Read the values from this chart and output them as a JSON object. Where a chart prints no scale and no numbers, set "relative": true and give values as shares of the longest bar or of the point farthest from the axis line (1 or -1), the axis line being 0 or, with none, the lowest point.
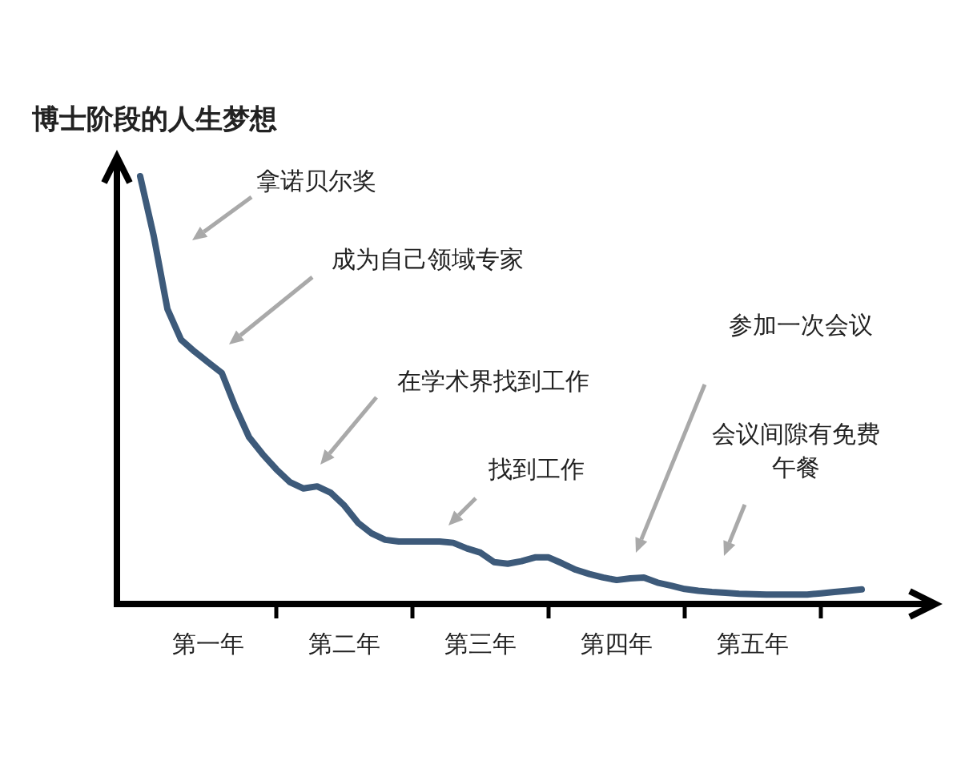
{
  "chart_data": {
    "type": "line",
    "title": "博士阶段的人生梦想",
    "relative": true,
    "categories": [
      null,
      null,
      null,
      null,
      null,
      "第一年",
      null,
      null,
      null,
      null,
      null,
      null,
      null,
      null,
      null,
      "第二年",
      null,
      null,
      null,
      null,
      null,
      null,
      null,
      null,
      null,
      "第三年",
      null,
      null,
      null,
      null,
      null,
      null,
      null,
      null,
      null,
      "第四年",
      null,
      null,
      null,
      null,
      null,
      null,
      null,
      null,
      null,
      "第五年",
      null,
      null,
      null,
      null,
      null,
      null,
      null,
      null
    ],
    "tick_labels": "x",
    "grid": false,
    "marker": "none",
    "line_style": "solid",
    "series": [
      {
        "color": "#3d5a7a",
        "values": [
          1.0,
          0.86,
          0.69,
          0.618,
          0.59,
          0.565,
          0.54,
          0.46,
          0.39,
          0.35,
          0.315,
          0.285,
          0.27,
          0.275,
          0.26,
          0.23,
          0.19,
          0.165,
          0.15,
          0.146,
          0.146,
          0.146,
          0.146,
          0.143,
          0.13,
          0.12,
          0.098,
          0.094,
          0.1,
          0.109,
          0.109,
          0.095,
          0.08,
          0.07,
          0.062,
          0.056,
          0.06,
          0.062,
          0.05,
          0.043,
          0.035,
          0.031,
          0.028,
          0.026,
          0.024,
          0.023,
          0.022,
          0.022,
          0.022,
          0.022,
          0.025,
          0.028,
          0.031,
          0.034
        ]
      }
    ],
    "annotations": [
      "拿诺贝尔奖",
      "成为自己领域专家",
      "在学术界找到工作",
      "找到工作",
      "参加一次会议",
      "会议间隙有免费午餐"
    ]
  }
}
